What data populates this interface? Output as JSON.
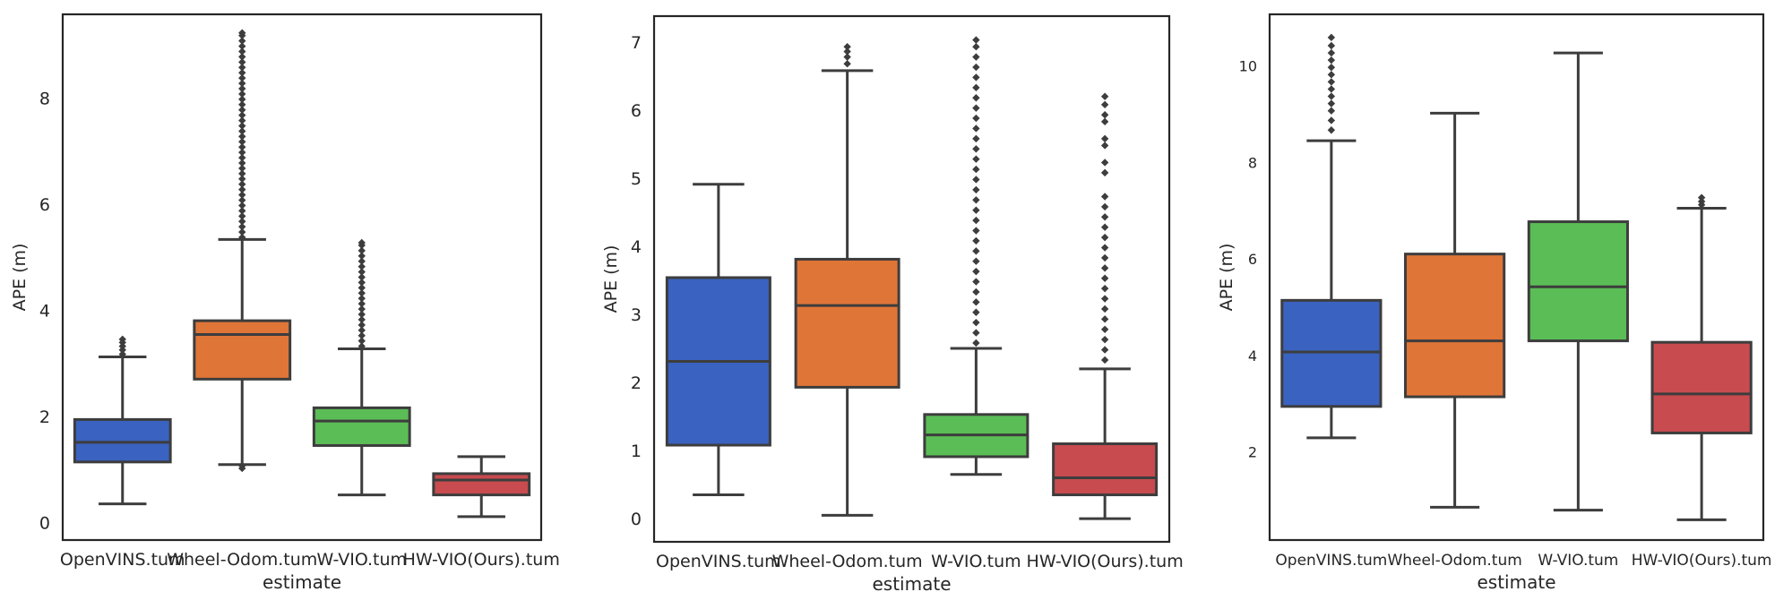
{
  "chart_data": [
    {
      "type": "box",
      "title": "",
      "xlabel": "estimate",
      "ylabel": "APE (m)",
      "ylim": [
        -0.3,
        9.6
      ],
      "yticks": [
        0,
        2,
        4,
        6,
        8
      ],
      "categories": [
        "OpenVINS.tum",
        "Wheel-Odom.tum",
        "W-VIO.tum",
        "HW-VIO(Ours).tum"
      ],
      "colors": [
        "#3a62c0",
        "#e07538",
        "#5bbd56",
        "#c84b4f"
      ],
      "boxes": [
        {
          "whislo": 0.38,
          "q1": 1.17,
          "med": 1.54,
          "q3": 1.97,
          "whishi": 3.15,
          "fliers": [
            3.2,
            3.28,
            3.35,
            3.42,
            3.48
          ]
        },
        {
          "whislo": 1.12,
          "q1": 2.73,
          "med": 3.57,
          "q3": 3.83,
          "whishi": 5.36,
          "fliers": [
            1.05,
            1.1,
            5.4,
            5.5,
            5.6,
            5.7,
            5.8,
            5.9,
            6.0,
            6.1,
            6.2,
            6.3,
            6.4,
            6.5,
            6.6,
            6.7,
            6.8,
            6.9,
            7.0,
            7.1,
            7.2,
            7.3,
            7.4,
            7.5,
            7.6,
            7.7,
            7.8,
            7.9,
            8.0,
            8.1,
            8.2,
            8.3,
            8.4,
            8.5,
            8.6,
            8.7,
            8.8,
            8.9,
            9.0,
            9.1,
            9.2,
            9.25
          ]
        },
        {
          "whislo": 0.55,
          "q1": 1.48,
          "med": 1.94,
          "q3": 2.19,
          "whishi": 3.3,
          "fliers": [
            3.35,
            3.45,
            3.55,
            3.65,
            3.75,
            3.85,
            3.95,
            4.05,
            4.15,
            4.25,
            4.35,
            4.45,
            4.55,
            4.65,
            4.75,
            4.85,
            4.95,
            5.05,
            5.15,
            5.25,
            5.3
          ]
        },
        {
          "whislo": 0.14,
          "q1": 0.55,
          "med": 0.83,
          "q3": 0.95,
          "whishi": 1.27,
          "fliers": []
        }
      ]
    },
    {
      "type": "box",
      "title": "",
      "xlabel": "estimate",
      "ylabel": "APE (m)",
      "ylim": [
        -0.32,
        7.4
      ],
      "yticks": [
        0,
        1,
        2,
        3,
        4,
        5,
        6,
        7
      ],
      "categories": [
        "OpenVINS.tum",
        "Wheel-Odom.tum",
        "W-VIO.tum",
        "HW-VIO(Ours).tum"
      ],
      "colors": [
        "#3a62c0",
        "#e07538",
        "#5bbd56",
        "#c84b4f"
      ],
      "boxes": [
        {
          "whislo": 0.37,
          "q1": 1.1,
          "med": 2.33,
          "q3": 3.56,
          "whishi": 4.93,
          "fliers": []
        },
        {
          "whislo": 0.07,
          "q1": 1.95,
          "med": 3.15,
          "q3": 3.83,
          "whishi": 6.6,
          "fliers": [
            6.7,
            6.8,
            6.88,
            6.95
          ]
        },
        {
          "whislo": 0.67,
          "q1": 0.93,
          "med": 1.25,
          "q3": 1.55,
          "whishi": 2.52,
          "fliers": [
            2.6,
            2.75,
            2.9,
            3.05,
            3.2,
            3.35,
            3.5,
            3.65,
            3.8,
            3.95,
            4.1,
            4.25,
            4.4,
            4.55,
            4.7,
            4.85,
            5.0,
            5.15,
            5.3,
            5.45,
            5.6,
            5.75,
            5.9,
            6.05,
            6.2,
            6.35,
            6.5,
            6.65,
            6.8,
            6.95,
            7.05
          ]
        },
        {
          "whislo": 0.02,
          "q1": 0.37,
          "med": 0.62,
          "q3": 1.12,
          "whishi": 2.22,
          "fliers": [
            2.35,
            2.5,
            2.65,
            2.8,
            2.95,
            3.1,
            3.25,
            3.4,
            3.55,
            3.7,
            3.85,
            4.0,
            4.15,
            4.3,
            4.45,
            4.6,
            4.75,
            5.1,
            5.25,
            5.5,
            5.6,
            5.85,
            5.95,
            6.1,
            6.22
          ]
        }
      ]
    },
    {
      "type": "box",
      "title": "",
      "xlabel": "estimate",
      "ylabel": "APE (m)",
      "ylim": [
        0.2,
        11.1
      ],
      "yticks": [
        2,
        4,
        6,
        8,
        10
      ],
      "categories": [
        "OpenVINS.tum",
        "Wheel-Odom.tum",
        "W-VIO.tum",
        "HW-VIO(Ours).tum"
      ],
      "colors": [
        "#3a62c0",
        "#e07538",
        "#5bbd56",
        "#c84b4f"
      ],
      "boxes": [
        {
          "whislo": 2.32,
          "q1": 2.97,
          "med": 4.1,
          "q3": 5.17,
          "whishi": 8.48,
          "fliers": [
            8.7,
            8.9,
            9.1,
            9.25,
            9.4,
            9.55,
            9.7,
            9.85,
            10.0,
            10.15,
            10.3,
            10.45,
            10.62
          ]
        },
        {
          "whislo": 0.88,
          "q1": 3.17,
          "med": 4.33,
          "q3": 6.13,
          "whishi": 9.05,
          "fliers": []
        },
        {
          "whislo": 0.82,
          "q1": 4.33,
          "med": 5.45,
          "q3": 6.8,
          "whishi": 10.3,
          "fliers": []
        },
        {
          "whislo": 0.62,
          "q1": 2.42,
          "med": 3.23,
          "q3": 4.3,
          "whishi": 7.08,
          "fliers": [
            7.15,
            7.22,
            7.3
          ]
        }
      ]
    }
  ]
}
